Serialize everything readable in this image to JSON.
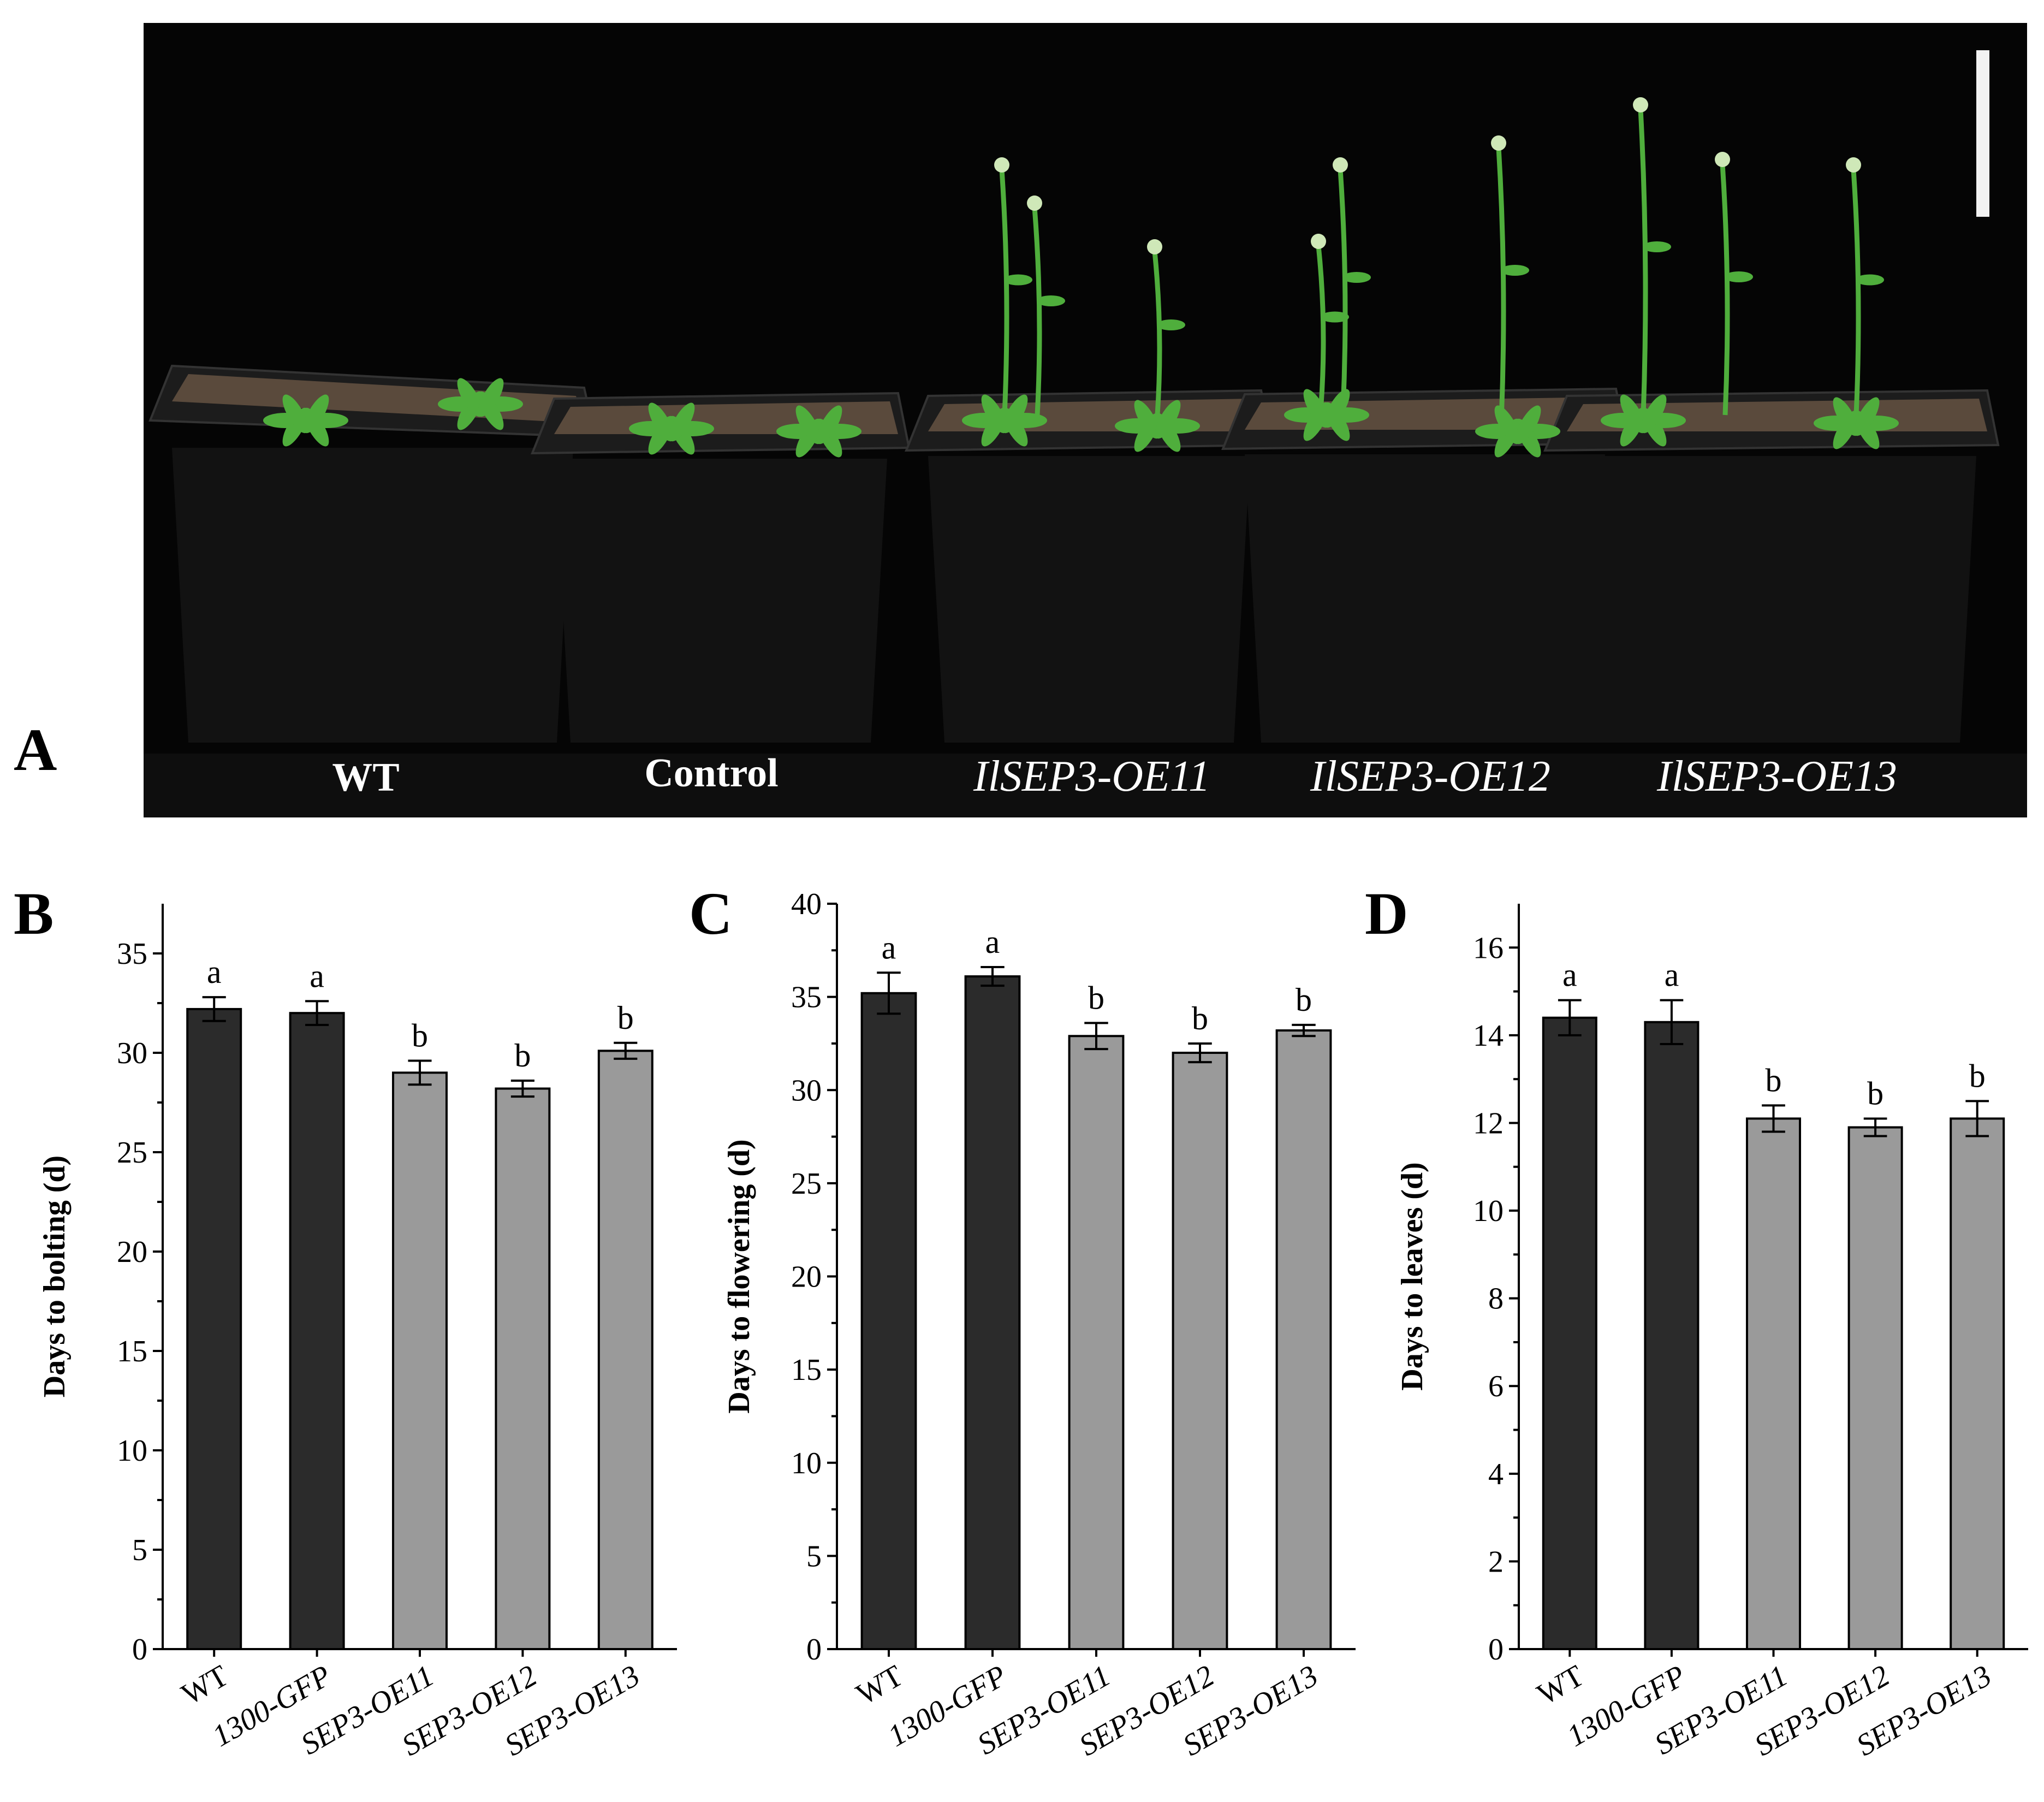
{
  "panels": {
    "A": {
      "letter": "A",
      "labels": [
        {
          "text": "WT",
          "italic": false
        },
        {
          "text": "Control",
          "italic": false
        },
        {
          "text": "IlSEP3-OE11",
          "italic": true
        },
        {
          "text": "IlSEP3-OE12",
          "italic": true
        },
        {
          "text": "IlSEP3-OE13",
          "italic": true
        }
      ]
    }
  },
  "colors": {
    "control_bar": "#2b2b2b",
    "transgenic_bar": "#9a9a9a",
    "photo_background": "#050505",
    "pot": "#121212",
    "plant": "#4fae3c"
  },
  "chart_data": [
    {
      "panel": "B",
      "type": "bar",
      "categories": [
        "WT",
        "1300-GFP",
        "SEP3-OE11",
        "SEP3-OE12",
        "SEP3-OE13"
      ],
      "italic_categories": [
        false,
        true,
        true,
        true,
        true
      ],
      "values": [
        32.2,
        32.0,
        29.0,
        28.2,
        30.1
      ],
      "errors": [
        0.6,
        0.6,
        0.6,
        0.4,
        0.4
      ],
      "significance": [
        "a",
        "a",
        "b",
        "b",
        "b"
      ],
      "ylabel": "Days to bolting (d)",
      "ylim": [
        0,
        37.5
      ],
      "yticks": [
        0,
        5,
        10,
        15,
        20,
        25,
        30,
        35
      ],
      "bar_groups": [
        "control",
        "control",
        "transgenic",
        "transgenic",
        "transgenic"
      ]
    },
    {
      "panel": "C",
      "type": "bar",
      "categories": [
        "WT",
        "1300-GFP",
        "SEP3-OE11",
        "SEP3-OE12",
        "SEP3-OE13"
      ],
      "italic_categories": [
        false,
        true,
        true,
        true,
        true
      ],
      "values": [
        35.2,
        36.1,
        32.9,
        32.0,
        33.2
      ],
      "errors": [
        1.1,
        0.5,
        0.7,
        0.5,
        0.3
      ],
      "significance": [
        "a",
        "a",
        "b",
        "b",
        "b"
      ],
      "ylabel": "Days to flowering (d)",
      "ylim": [
        0,
        40
      ],
      "yticks": [
        0,
        5,
        10,
        15,
        20,
        25,
        30,
        35,
        40
      ],
      "bar_groups": [
        "control",
        "control",
        "transgenic",
        "transgenic",
        "transgenic"
      ]
    },
    {
      "panel": "D",
      "type": "bar",
      "categories": [
        "WT",
        "1300-GFP",
        "SEP3-OE11",
        "SEP3-OE12",
        "SEP3-OE13"
      ],
      "italic_categories": [
        false,
        true,
        true,
        true,
        true
      ],
      "values": [
        14.4,
        14.3,
        12.1,
        11.9,
        12.1
      ],
      "errors": [
        0.4,
        0.5,
        0.3,
        0.2,
        0.4
      ],
      "significance": [
        "a",
        "a",
        "b",
        "b",
        "b"
      ],
      "ylabel": "Days to leaves (d)",
      "ylim": [
        0,
        17
      ],
      "yticks": [
        0,
        2,
        4,
        6,
        8,
        10,
        12,
        14,
        16
      ],
      "bar_groups": [
        "control",
        "control",
        "transgenic",
        "transgenic",
        "transgenic"
      ]
    }
  ]
}
